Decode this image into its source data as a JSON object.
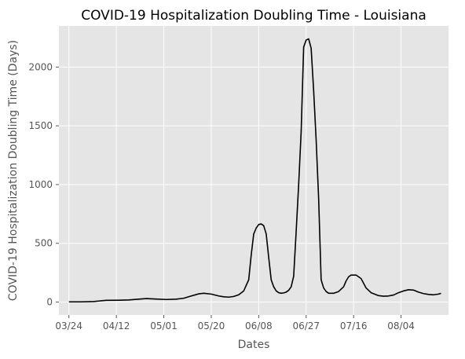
{
  "chart_data": {
    "type": "line",
    "title": "COVID-19 Hospitalization Doubling Time - Louisiana",
    "xlabel": "Dates",
    "ylabel": "COVID-19 Hospitalization Doubling Time (Days)",
    "x_ticks": [
      "03/24",
      "04/12",
      "05/01",
      "05/20",
      "06/08",
      "06/27",
      "07/16",
      "08/04"
    ],
    "y_ticks": [
      0,
      500,
      1000,
      1500,
      2000
    ],
    "ylim": [
      -110,
      2350
    ],
    "xlim_days": [
      -4,
      152
    ],
    "grid": true,
    "line_color": "#000000",
    "background": "#e5e5e5",
    "series": [
      {
        "values": [
          [
            0,
            2
          ],
          [
            5,
            2
          ],
          [
            10,
            5
          ],
          [
            15,
            15
          ],
          [
            20,
            16
          ],
          [
            24,
            18
          ],
          [
            28,
            25
          ],
          [
            31,
            30
          ],
          [
            35,
            26
          ],
          [
            39,
            22
          ],
          [
            43,
            25
          ],
          [
            46,
            33
          ],
          [
            49,
            52
          ],
          [
            52,
            70
          ],
          [
            54,
            75
          ],
          [
            57,
            68
          ],
          [
            60,
            52
          ],
          [
            62,
            45
          ],
          [
            64,
            42
          ],
          [
            66,
            48
          ],
          [
            68,
            62
          ],
          [
            70,
            95
          ],
          [
            72,
            190
          ],
          [
            73,
            400
          ],
          [
            74,
            580
          ],
          [
            75,
            630
          ],
          [
            76,
            660
          ],
          [
            77,
            665
          ],
          [
            78,
            650
          ],
          [
            79,
            580
          ],
          [
            80,
            380
          ],
          [
            81,
            190
          ],
          [
            82,
            130
          ],
          [
            83,
            95
          ],
          [
            84,
            80
          ],
          [
            85,
            75
          ],
          [
            86,
            78
          ],
          [
            87,
            85
          ],
          [
            88,
            100
          ],
          [
            89,
            130
          ],
          [
            90,
            220
          ],
          [
            91,
            600
          ],
          [
            92,
            1000
          ],
          [
            93,
            1450
          ],
          [
            94,
            2170
          ],
          [
            95,
            2230
          ],
          [
            96,
            2240
          ],
          [
            97,
            2160
          ],
          [
            98,
            1800
          ],
          [
            99,
            1380
          ],
          [
            100,
            880
          ],
          [
            101,
            190
          ],
          [
            102,
            120
          ],
          [
            103,
            90
          ],
          [
            104,
            75
          ],
          [
            106,
            75
          ],
          [
            108,
            90
          ],
          [
            110,
            130
          ],
          [
            111,
            180
          ],
          [
            112,
            215
          ],
          [
            113,
            230
          ],
          [
            115,
            230
          ],
          [
            117,
            200
          ],
          [
            119,
            120
          ],
          [
            121,
            80
          ],
          [
            124,
            55
          ],
          [
            126,
            50
          ],
          [
            128,
            52
          ],
          [
            130,
            60
          ],
          [
            132,
            80
          ],
          [
            134,
            95
          ],
          [
            136,
            105
          ],
          [
            138,
            102
          ],
          [
            140,
            85
          ],
          [
            142,
            72
          ],
          [
            144,
            65
          ],
          [
            146,
            62
          ],
          [
            148,
            68
          ],
          [
            149,
            75
          ]
        ]
      }
    ]
  }
}
